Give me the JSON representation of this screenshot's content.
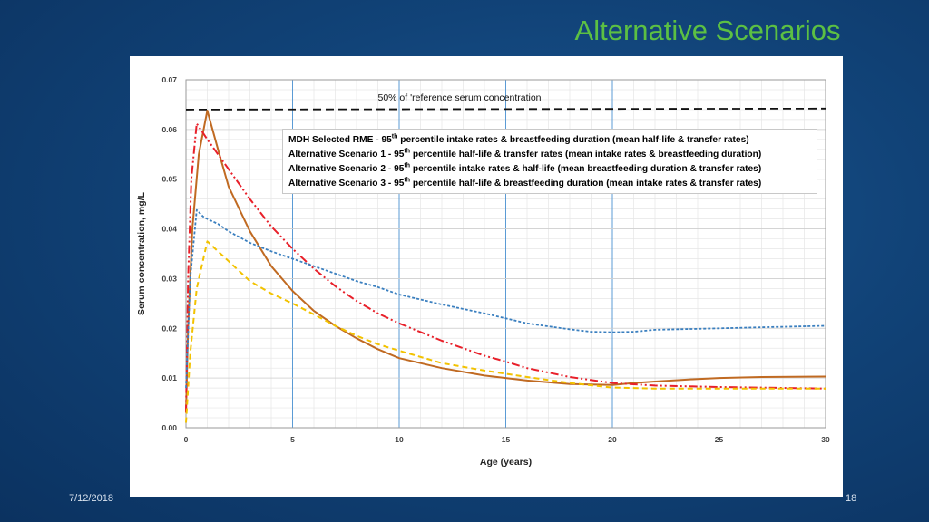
{
  "slide": {
    "title": "Alternative Scenarios",
    "date": "7/12/2018",
    "page_number": "18"
  },
  "chart_data": {
    "type": "line",
    "title": "",
    "xlabel": "Age (years)",
    "ylabel": "Serum concentration, mg/L",
    "xlim": [
      0,
      30
    ],
    "ylim": [
      0,
      0.07
    ],
    "x_ticks": [
      "0",
      "5",
      "10",
      "15",
      "20",
      "25",
      "30"
    ],
    "y_ticks": [
      "0.00",
      "0.01",
      "0.02",
      "0.03",
      "0.04",
      "0.05",
      "0.06",
      "0.07"
    ],
    "grid": true,
    "legend_position": "upper-center",
    "reference_line": {
      "label": "50% of 'reference serum concentration",
      "values": [
        [
          0,
          0.064
        ],
        [
          30,
          0.0642
        ]
      ],
      "color": "#111111",
      "style": "dashed"
    },
    "series": [
      {
        "name_prefix": "MDH Selected RME - 95",
        "name_sup": "th",
        "name_suffix": " percentile intake rates & breastfeeding duration  (mean half-life & transfer rates)",
        "color": "#c06a22",
        "style": "solid",
        "points": [
          [
            0,
            0.003
          ],
          [
            0.1,
            0.02
          ],
          [
            0.3,
            0.04
          ],
          [
            0.6,
            0.055
          ],
          [
            1.0,
            0.0638
          ],
          [
            1.5,
            0.056
          ],
          [
            2,
            0.0485
          ],
          [
            3,
            0.0395
          ],
          [
            4,
            0.0325
          ],
          [
            5,
            0.0275
          ],
          [
            6,
            0.0235
          ],
          [
            7,
            0.0205
          ],
          [
            8,
            0.018
          ],
          [
            9,
            0.0158
          ],
          [
            10,
            0.014
          ],
          [
            12,
            0.012
          ],
          [
            14,
            0.0105
          ],
          [
            16,
            0.0095
          ],
          [
            18,
            0.0088
          ],
          [
            19,
            0.0087
          ],
          [
            20,
            0.0086
          ],
          [
            21,
            0.009
          ],
          [
            22,
            0.0093
          ],
          [
            24,
            0.0098
          ],
          [
            25,
            0.01
          ],
          [
            27,
            0.0102
          ],
          [
            30,
            0.0103
          ]
        ]
      },
      {
        "name_prefix": "Alternative Scenario 1 - 95",
        "name_sup": "th",
        "name_suffix": " percentile half-life & transfer rates (mean  intake rates & breastfeeding duration)",
        "color": "#e8202a",
        "style": "dashdotdot",
        "points": [
          [
            0,
            0.003
          ],
          [
            0.1,
            0.03
          ],
          [
            0.25,
            0.05
          ],
          [
            0.5,
            0.0612
          ],
          [
            1,
            0.058
          ],
          [
            2,
            0.052
          ],
          [
            3,
            0.046
          ],
          [
            4,
            0.0405
          ],
          [
            5,
            0.036
          ],
          [
            6,
            0.032
          ],
          [
            7,
            0.0285
          ],
          [
            8,
            0.0255
          ],
          [
            9,
            0.023
          ],
          [
            10,
            0.021
          ],
          [
            12,
            0.0175
          ],
          [
            14,
            0.0145
          ],
          [
            15,
            0.0133
          ],
          [
            16,
            0.012
          ],
          [
            18,
            0.0102
          ],
          [
            20,
            0.009
          ],
          [
            22,
            0.0085
          ],
          [
            25,
            0.0082
          ],
          [
            30,
            0.0079
          ]
        ]
      },
      {
        "name_prefix": "Alternative Scenario 2 - 95",
        "name_sup": "th",
        "name_suffix": " percentile intake rates & half-life (mean breastfeeding duration & transfer rates)",
        "color": "#3a7fbf",
        "style": "dotted",
        "points": [
          [
            0,
            0.008
          ],
          [
            0.2,
            0.03
          ],
          [
            0.5,
            0.0438
          ],
          [
            0.8,
            0.0425
          ],
          [
            1,
            0.042
          ],
          [
            1.5,
            0.041
          ],
          [
            2,
            0.0395
          ],
          [
            3,
            0.0372
          ],
          [
            4,
            0.0355
          ],
          [
            5,
            0.034
          ],
          [
            6,
            0.0325
          ],
          [
            7,
            0.031
          ],
          [
            8,
            0.0295
          ],
          [
            9,
            0.0283
          ],
          [
            10,
            0.0268
          ],
          [
            12,
            0.0248
          ],
          [
            14,
            0.023
          ],
          [
            16,
            0.021
          ],
          [
            18,
            0.0198
          ],
          [
            19,
            0.0193
          ],
          [
            20,
            0.0192
          ],
          [
            21,
            0.0193
          ],
          [
            22,
            0.0197
          ],
          [
            25,
            0.02
          ],
          [
            28,
            0.0203
          ],
          [
            30,
            0.0205
          ]
        ]
      },
      {
        "name_prefix": "Alternative Scenario 3 - 95",
        "name_sup": "th",
        "name_suffix": " percentile half-life & breastfeeding duration (mean intake rates & transfer rates)",
        "color": "#f2c200",
        "style": "dashed",
        "points": [
          [
            0,
            0.001
          ],
          [
            0.2,
            0.015
          ],
          [
            0.5,
            0.028
          ],
          [
            1,
            0.0375
          ],
          [
            1.5,
            0.0355
          ],
          [
            2,
            0.0335
          ],
          [
            3,
            0.0295
          ],
          [
            4,
            0.027
          ],
          [
            5,
            0.025
          ],
          [
            6,
            0.0228
          ],
          [
            7,
            0.0205
          ],
          [
            8,
            0.0185
          ],
          [
            9,
            0.0168
          ],
          [
            10,
            0.0155
          ],
          [
            12,
            0.013
          ],
          [
            14,
            0.0115
          ],
          [
            16,
            0.0102
          ],
          [
            18,
            0.009
          ],
          [
            20,
            0.0081
          ],
          [
            22,
            0.0079
          ],
          [
            25,
            0.0079
          ],
          [
            30,
            0.0079
          ]
        ]
      }
    ]
  }
}
